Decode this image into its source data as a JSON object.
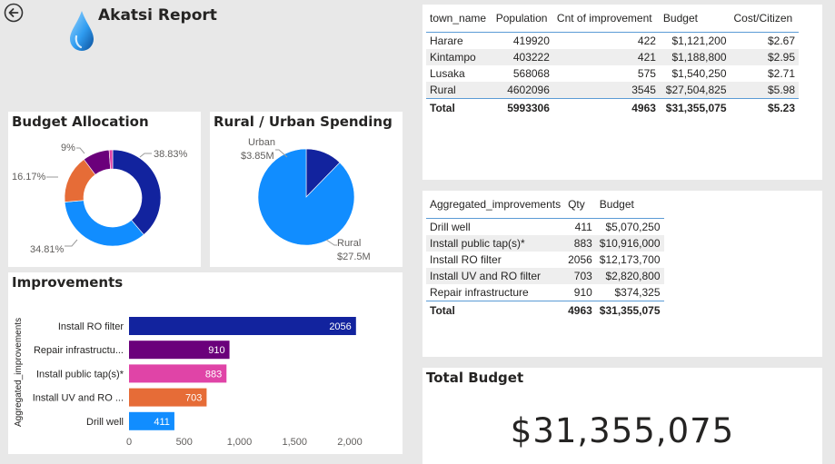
{
  "header": {
    "title": "Akatsi Report"
  },
  "towns_table": {
    "columns": [
      "town_name",
      "Population",
      "Cnt of improvement",
      "Budget",
      "Cost/Citizen"
    ],
    "rows": [
      [
        "Harare",
        "419920",
        "422",
        "$1,121,200",
        "$2.67"
      ],
      [
        "Kintampo",
        "403222",
        "421",
        "$1,188,800",
        "$2.95"
      ],
      [
        "Lusaka",
        "568068",
        "575",
        "$1,540,250",
        "$2.71"
      ],
      [
        "Rural",
        "4602096",
        "3545",
        "$27,504,825",
        "$5.98"
      ]
    ],
    "total": [
      "Total",
      "5993306",
      "4963",
      "$31,355,075",
      "$5.23"
    ]
  },
  "improvements_table": {
    "columns": [
      "Aggregated_improvements",
      "Qty",
      "Budget"
    ],
    "rows": [
      [
        "Drill well",
        "411",
        "$5,070,250"
      ],
      [
        "Install public tap(s)*",
        "883",
        "$10,916,000"
      ],
      [
        "Install RO filter",
        "2056",
        "$12,173,700"
      ],
      [
        "Install UV and RO filter",
        "703",
        "$2,820,800"
      ],
      [
        "Repair infrastructure",
        "910",
        "$374,325"
      ]
    ],
    "total": [
      "Total",
      "4963",
      "$31,355,075"
    ]
  },
  "budget_allocation": {
    "title": "Budget Allocation",
    "slice_labels": [
      "38.83%",
      "34.81%",
      "16.17%",
      "9%"
    ]
  },
  "rural_urban": {
    "title": "Rural / Urban Spending",
    "labels": {
      "urban_name": "Urban",
      "urban_value": "$3.85M",
      "rural_name": "Rural",
      "rural_value": "$27.5M"
    }
  },
  "improvements_chart": {
    "title": "Improvements",
    "ylabel": "Aggregated_improvements"
  },
  "total_budget": {
    "title": "Total Budget",
    "value": "$31,355,075"
  },
  "colors": {
    "dark_blue": "#12239e",
    "light_blue": "#118dff",
    "orange": "#e66c37",
    "purple": "#6b007b",
    "pink": "#e044a7"
  },
  "icons": {
    "back": "back-arrow-icon",
    "logo": "water-drop-icon"
  },
  "chart_data": [
    {
      "type": "pie",
      "title": "Budget Allocation",
      "variant": "donut",
      "values": [
        38.83,
        34.81,
        16.17,
        9.0,
        1.19
      ],
      "colors": [
        "#12239e",
        "#118dff",
        "#e66c37",
        "#6b007b",
        "#e044a7"
      ],
      "labels": [
        "38.83%",
        "34.81%",
        "16.17%",
        "9%",
        ""
      ]
    },
    {
      "type": "pie",
      "title": "Rural / Urban Spending",
      "categories": [
        "Urban",
        "Rural"
      ],
      "values": [
        3.85,
        27.5
      ],
      "colors": [
        "#12239e",
        "#118dff"
      ]
    },
    {
      "type": "bar",
      "orientation": "horizontal",
      "title": "Improvements",
      "ylabel": "Aggregated_improvements",
      "categories": [
        "Install RO filter",
        "Repair infrastructu...",
        "Install public tap(s)*",
        "Install UV and RO ...",
        "Drill well"
      ],
      "values": [
        2056,
        910,
        883,
        703,
        411
      ],
      "colors": [
        "#12239e",
        "#6b007b",
        "#e044a7",
        "#e66c37",
        "#118dff"
      ],
      "xlim": [
        0,
        2000
      ],
      "xticks": [
        0,
        500,
        1000,
        1500,
        2000
      ],
      "xtick_labels": [
        "0",
        "500",
        "1,000",
        "1,500",
        "2,000"
      ]
    }
  ]
}
